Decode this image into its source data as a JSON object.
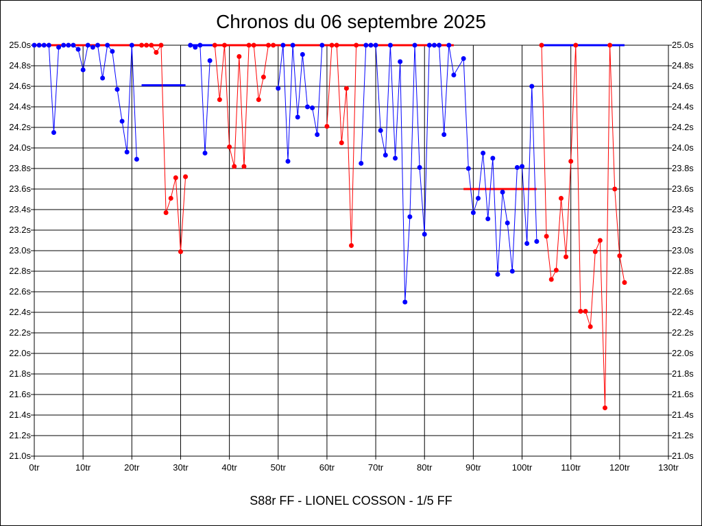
{
  "chart_data": {
    "type": "line",
    "title": "Chronos du 06 septembre 2025",
    "subtitle": "S88r FF - LIONEL COSSON - 1/5 FF",
    "xlim": [
      0,
      130
    ],
    "ylim": [
      21.0,
      25.0
    ],
    "x_ticks": [
      0,
      10,
      20,
      30,
      40,
      50,
      60,
      70,
      80,
      90,
      100,
      110,
      120,
      130
    ],
    "x_tick_labels": [
      "0tr",
      "10tr",
      "20tr",
      "30tr",
      "40tr",
      "50tr",
      "60tr",
      "70tr",
      "80tr",
      "90tr",
      "100tr",
      "110tr",
      "120tr",
      "130tr"
    ],
    "y_ticks": [
      21.0,
      21.2,
      21.4,
      21.6,
      21.8,
      22.0,
      22.2,
      22.4,
      22.6,
      22.8,
      23.0,
      23.2,
      23.4,
      23.6,
      23.8,
      24.0,
      24.2,
      24.4,
      24.6,
      24.8,
      25.0
    ],
    "y_tick_labels": [
      "21.0s",
      "21.2s",
      "21.4s",
      "21.6s",
      "21.8s",
      "22.0s",
      "22.2s",
      "22.4s",
      "22.6s",
      "22.8s",
      "23.0s",
      "23.2s",
      "23.4s",
      "23.6s",
      "23.8s",
      "24.0s",
      "24.2s",
      "24.4s",
      "24.6s",
      "24.8s",
      "25.0s"
    ],
    "grid": true,
    "series": [
      {
        "color": "#0000ff",
        "points": [
          [
            0,
            25.0
          ],
          [
            1,
            25.0
          ],
          [
            2,
            25.0
          ],
          [
            3,
            25.0
          ],
          [
            4,
            24.15
          ],
          [
            5,
            24.98
          ],
          [
            6,
            25.0
          ],
          [
            7,
            25.0
          ],
          [
            8,
            25.0
          ],
          [
            9,
            24.96
          ],
          [
            10,
            24.76
          ],
          [
            11,
            25.0
          ],
          [
            12,
            24.98
          ],
          [
            13,
            25.0
          ],
          [
            14,
            24.68
          ],
          [
            15,
            25.0
          ],
          [
            16,
            24.94
          ],
          [
            17,
            24.57
          ],
          [
            18,
            24.26
          ],
          [
            19,
            23.96
          ],
          [
            20,
            25.0
          ],
          [
            21,
            23.89
          ]
        ]
      },
      {
        "color": "#ff0000",
        "points": [
          [
            22,
            25.0
          ],
          [
            23,
            25.0
          ],
          [
            24,
            25.0
          ],
          [
            25,
            24.93
          ],
          [
            26,
            25.0
          ],
          [
            27,
            23.37
          ],
          [
            28,
            23.51
          ],
          [
            29,
            23.71
          ],
          [
            30,
            22.99
          ],
          [
            31,
            23.72
          ]
        ]
      },
      {
        "color": "#0000ff",
        "points": [
          [
            32,
            25.0
          ],
          [
            33,
            24.98
          ],
          [
            34,
            25.0
          ],
          [
            35,
            23.95
          ],
          [
            36,
            24.85
          ]
        ]
      },
      {
        "color": "#ff0000",
        "points": [
          [
            37,
            25.0
          ],
          [
            38,
            24.47
          ],
          [
            39,
            25.0
          ],
          [
            40,
            24.01
          ],
          [
            41,
            23.82
          ],
          [
            42,
            24.89
          ],
          [
            43,
            23.82
          ],
          [
            44,
            25.0
          ],
          [
            45,
            25.0
          ],
          [
            46,
            24.47
          ],
          [
            47,
            24.69
          ],
          [
            48,
            25.0
          ],
          [
            49,
            25.0
          ]
        ]
      },
      {
        "color": "#0000ff",
        "points": [
          [
            50,
            24.58
          ],
          [
            51,
            25.0
          ],
          [
            52,
            23.87
          ],
          [
            53,
            25.0
          ],
          [
            54,
            24.3
          ],
          [
            55,
            24.91
          ],
          [
            56,
            24.4
          ],
          [
            57,
            24.39
          ],
          [
            58,
            24.13
          ],
          [
            59,
            25.0
          ]
        ]
      },
      {
        "color": "#ff0000",
        "points": [
          [
            60,
            24.21
          ],
          [
            61,
            25.0
          ],
          [
            62,
            25.0
          ],
          [
            63,
            24.05
          ],
          [
            64,
            24.58
          ],
          [
            65,
            23.05
          ],
          [
            66,
            25.0
          ]
        ]
      },
      {
        "color": "#0000ff",
        "points": [
          [
            67,
            23.85
          ],
          [
            68,
            25.0
          ],
          [
            69,
            25.0
          ],
          [
            70,
            25.0
          ],
          [
            71,
            24.17
          ],
          [
            72,
            23.93
          ],
          [
            73,
            25.0
          ],
          [
            74,
            23.9
          ],
          [
            75,
            24.84
          ],
          [
            76,
            22.5
          ],
          [
            77,
            23.33
          ],
          [
            78,
            25.0
          ],
          [
            79,
            23.81
          ],
          [
            80,
            23.16
          ],
          [
            81,
            25.0
          ],
          [
            82,
            25.0
          ],
          [
            83,
            25.0
          ],
          [
            84,
            24.13
          ],
          [
            85,
            25.0
          ],
          [
            86,
            24.71
          ],
          [
            88,
            24.87
          ],
          [
            89,
            23.8
          ],
          [
            90,
            23.37
          ],
          [
            91,
            23.51
          ],
          [
            92,
            23.95
          ],
          [
            93,
            23.31
          ],
          [
            94,
            23.9
          ],
          [
            95,
            22.77
          ],
          [
            96,
            23.57
          ],
          [
            97,
            23.27
          ],
          [
            98,
            22.8
          ],
          [
            99,
            23.81
          ],
          [
            100,
            23.82
          ],
          [
            101,
            23.07
          ],
          [
            102,
            24.6
          ],
          [
            103,
            23.09
          ]
        ]
      },
      {
        "color": "#ff0000",
        "points": [
          [
            104,
            25.0
          ],
          [
            105,
            23.14
          ],
          [
            106,
            22.72
          ],
          [
            107,
            22.81
          ],
          [
            108,
            23.51
          ],
          [
            109,
            22.94
          ],
          [
            110,
            23.87
          ],
          [
            111,
            25.0
          ],
          [
            112,
            22.41
          ],
          [
            113,
            22.41
          ],
          [
            114,
            22.26
          ],
          [
            115,
            22.99
          ],
          [
            116,
            23.1
          ],
          [
            117,
            21.47
          ],
          [
            118,
            25.0
          ],
          [
            119,
            23.6
          ],
          [
            120,
            22.95
          ],
          [
            121,
            22.69
          ]
        ]
      }
    ],
    "reference_lines": [
      {
        "color": "#ff0000",
        "x": [
          0,
          26
        ],
        "y": 25.0
      },
      {
        "color": "#0000ff",
        "x": [
          22,
          31
        ],
        "y": 24.61
      },
      {
        "color": "#0000ff",
        "x": [
          32,
          59
        ],
        "y": 25.0
      },
      {
        "color": "#ff0000",
        "x": [
          37,
          86
        ],
        "y": 25.0
      },
      {
        "color": "#ff0000",
        "x": [
          88,
          103
        ],
        "y": 23.6
      },
      {
        "color": "#0000ff",
        "x": [
          104,
          121
        ],
        "y": 25.0
      }
    ]
  }
}
